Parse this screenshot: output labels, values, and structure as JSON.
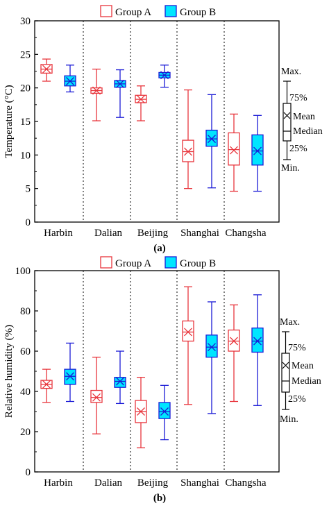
{
  "legend": {
    "group_a": "Group A",
    "group_b": "Group B"
  },
  "colors": {
    "group_a": "#e8343b",
    "group_b_fill": "#00e5ff",
    "group_b_stroke": "#1a1ad6",
    "axis": "#000000"
  },
  "key": {
    "max": "Max.",
    "q3": "75%",
    "mean": "Mean",
    "median": "Median",
    "q1": "25%",
    "min": "Min."
  },
  "chart_data": [
    {
      "type": "box",
      "panel_label": "(a)",
      "ylabel": "Temperature (°C)",
      "xlabel": "",
      "ylim": [
        0,
        30
      ],
      "yticks": [
        0,
        5,
        10,
        15,
        20,
        25,
        30
      ],
      "categories": [
        "Harbin",
        "Dalian",
        "Beijing",
        "Shanghai",
        "Changsha"
      ],
      "series": [
        {
          "name": "Group A",
          "boxes": [
            {
              "min": 21.0,
              "q1": 22.2,
              "median": 22.8,
              "mean": 22.8,
              "q3": 23.5,
              "max": 24.3
            },
            {
              "min": 15.1,
              "q1": 19.2,
              "median": 19.6,
              "mean": 19.6,
              "q3": 20.0,
              "max": 22.8
            },
            {
              "min": 15.1,
              "q1": 17.8,
              "median": 18.3,
              "mean": 18.3,
              "q3": 18.9,
              "max": 20.3
            },
            {
              "min": 5.0,
              "q1": 9.0,
              "median": 10.5,
              "mean": 10.5,
              "q3": 12.2,
              "max": 19.7
            },
            {
              "min": 4.6,
              "q1": 8.5,
              "median": 10.8,
              "mean": 10.7,
              "q3": 13.3,
              "max": 16.1
            }
          ]
        },
        {
          "name": "Group B",
          "boxes": [
            {
              "min": 19.4,
              "q1": 20.3,
              "median": 21.0,
              "mean": 21.0,
              "q3": 21.8,
              "max": 23.4
            },
            {
              "min": 15.6,
              "q1": 20.1,
              "median": 20.6,
              "mean": 20.6,
              "q3": 21.1,
              "max": 22.7
            },
            {
              "min": 20.1,
              "q1": 21.5,
              "median": 21.9,
              "mean": 21.9,
              "q3": 22.3,
              "max": 23.4
            },
            {
              "min": 5.1,
              "q1": 11.3,
              "median": 12.4,
              "mean": 12.4,
              "q3": 13.7,
              "max": 19.0
            },
            {
              "min": 4.6,
              "q1": 8.5,
              "median": 10.6,
              "mean": 10.6,
              "q3": 13.0,
              "max": 15.9
            }
          ]
        }
      ]
    },
    {
      "type": "box",
      "panel_label": "(b)",
      "ylabel": "Relative humidity (%)",
      "xlabel": "",
      "ylim": [
        0,
        100
      ],
      "yticks": [
        0,
        20,
        40,
        60,
        80,
        100
      ],
      "categories": [
        "Harbin",
        "Dalian",
        "Beijing",
        "Shanghai",
        "Changsha"
      ],
      "series": [
        {
          "name": "Group A",
          "boxes": [
            {
              "min": 34.5,
              "q1": 41.5,
              "median": 43.5,
              "mean": 43.5,
              "q3": 45.5,
              "max": 51.0
            },
            {
              "min": 18.9,
              "q1": 34.5,
              "median": 37.0,
              "mean": 37.0,
              "q3": 40.5,
              "max": 57.0
            },
            {
              "min": 12.0,
              "q1": 24.5,
              "median": 30.0,
              "mean": 30.0,
              "q3": 35.5,
              "max": 47.0
            },
            {
              "min": 33.5,
              "q1": 65.0,
              "median": 69.5,
              "mean": 69.5,
              "q3": 75.0,
              "max": 92.0
            },
            {
              "min": 35.0,
              "q1": 60.0,
              "median": 65.0,
              "mean": 65.0,
              "q3": 70.5,
              "max": 83.0
            }
          ]
        },
        {
          "name": "Group B",
          "boxes": [
            {
              "min": 35.0,
              "q1": 43.5,
              "median": 47.5,
              "mean": 47.5,
              "q3": 51.0,
              "max": 64.0
            },
            {
              "min": 34.0,
              "q1": 42.0,
              "median": 45.0,
              "mean": 45.0,
              "q3": 47.0,
              "max": 60.0
            },
            {
              "min": 16.0,
              "q1": 26.5,
              "median": 30.0,
              "mean": 30.0,
              "q3": 34.5,
              "max": 43.0
            },
            {
              "min": 29.0,
              "q1": 57.0,
              "median": 62.0,
              "mean": 62.0,
              "q3": 68.0,
              "max": 84.5
            },
            {
              "min": 33.0,
              "q1": 59.5,
              "median": 65.0,
              "mean": 65.0,
              "q3": 71.5,
              "max": 88.0
            }
          ]
        }
      ]
    }
  ]
}
